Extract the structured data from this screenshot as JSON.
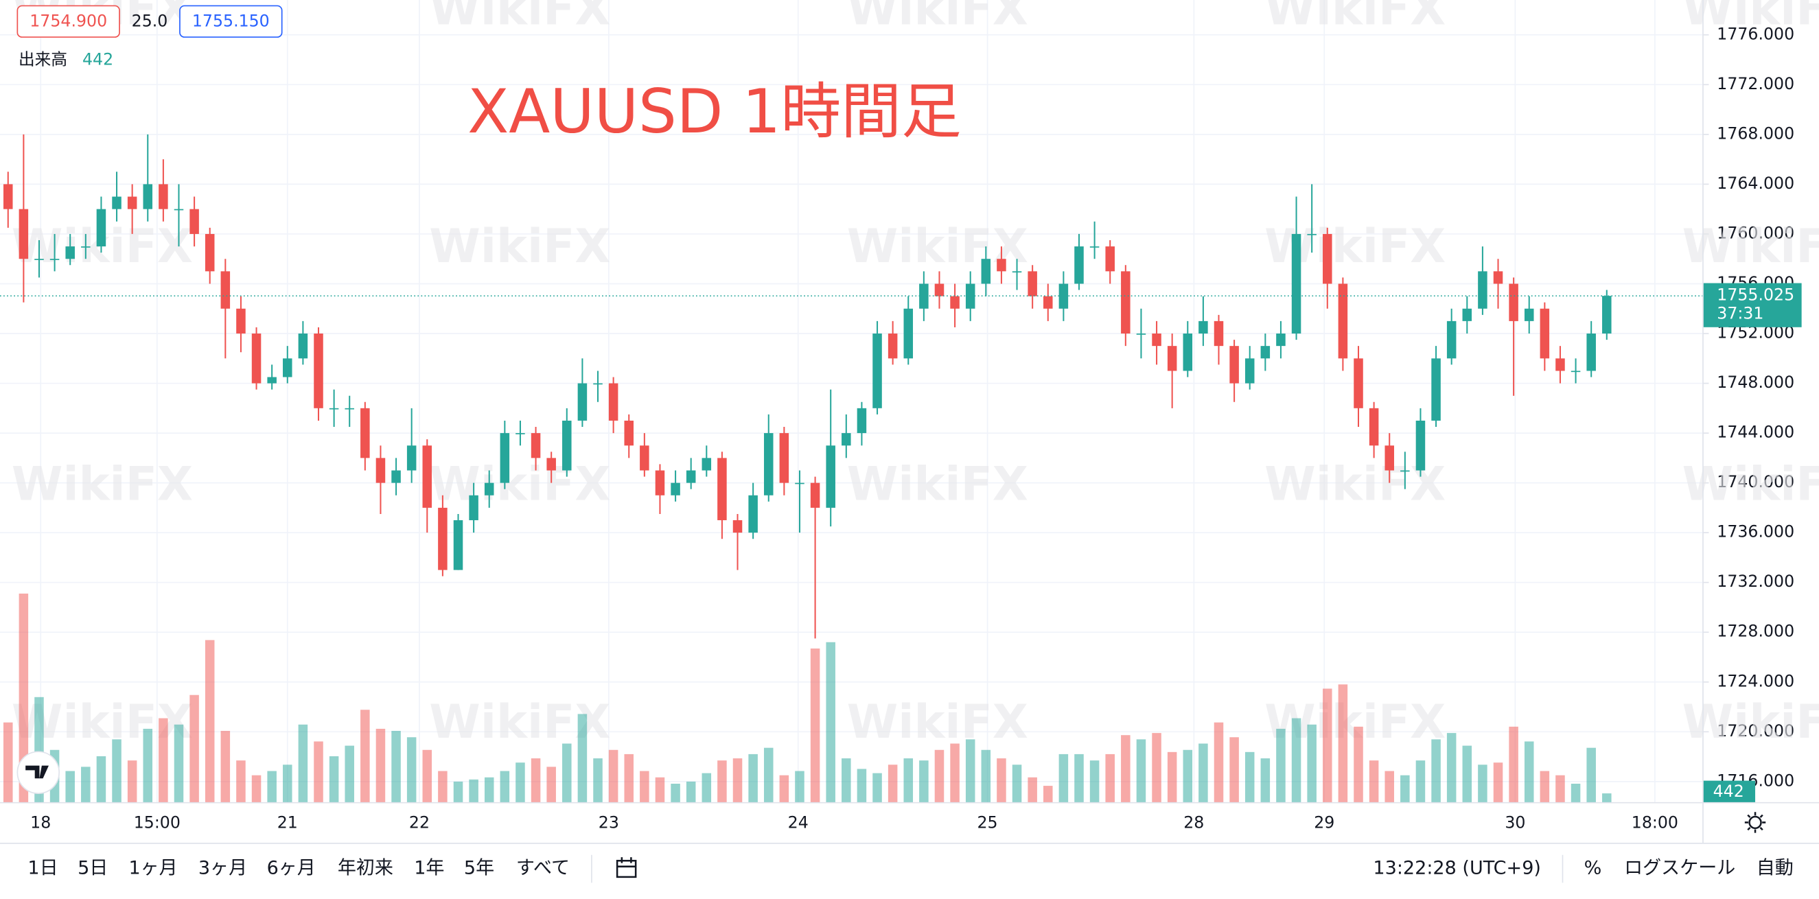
{
  "quote": {
    "bid": "1754.900",
    "spread": "25.0",
    "ask": "1755.150",
    "volume_label": "出来高",
    "volume": "442"
  },
  "watermark": "WikiFX",
  "chart_data": {
    "type": "candlestick",
    "title": "XAUUSD 1時間足",
    "up_color": "#26a69a",
    "down_color": "#ef5350",
    "grid": true,
    "xlim": [
      -0.52,
      109.2
    ],
    "xticks": [
      {
        "value": 2.1,
        "label": "18"
      },
      {
        "value": 9.6,
        "label": "15:00"
      },
      {
        "value": 18.0,
        "label": "21"
      },
      {
        "value": 26.5,
        "label": "22"
      },
      {
        "value": 38.7,
        "label": "23"
      },
      {
        "value": 50.9,
        "label": "24"
      },
      {
        "value": 63.1,
        "label": "25"
      },
      {
        "value": 76.4,
        "label": "28"
      },
      {
        "value": 84.8,
        "label": "29"
      },
      {
        "value": 97.1,
        "label": "30"
      },
      {
        "value": 106.1,
        "label": "18:00"
      }
    ],
    "ylim": [
      1714.3,
      1778.8
    ],
    "yticks": [
      {
        "value": 1716,
        "label": "1716.000"
      },
      {
        "value": 1720,
        "label": "1720.000"
      },
      {
        "value": 1724,
        "label": "1724.000"
      },
      {
        "value": 1728,
        "label": "1728.000"
      },
      {
        "value": 1732,
        "label": "1732.000"
      },
      {
        "value": 1736,
        "label": "1736.000"
      },
      {
        "value": 1740,
        "label": "1740.000"
      },
      {
        "value": 1744,
        "label": "1744.000"
      },
      {
        "value": 1748,
        "label": "1748.000"
      },
      {
        "value": 1752,
        "label": "1752.000"
      },
      {
        "value": 1756,
        "label": "1756.000"
      },
      {
        "value": 1760,
        "label": "1760.000"
      },
      {
        "value": 1764,
        "label": "1764.000"
      },
      {
        "value": 1768,
        "label": "1768.000"
      },
      {
        "value": 1772,
        "label": "1772.000"
      },
      {
        "value": 1776,
        "label": "1776.000"
      }
    ],
    "volume_ylim": [
      0,
      38000
    ],
    "countdown": "37:31",
    "candles": [
      [
        1764,
        1765,
        1760.5,
        1762
      ],
      [
        1762,
        1768,
        1754.5,
        1758
      ],
      [
        1758,
        1759.5,
        1756.5,
        1758
      ],
      [
        1758,
        1760,
        1757,
        1758
      ],
      [
        1758,
        1760,
        1757.5,
        1759
      ],
      [
        1759,
        1760,
        1758,
        1759
      ],
      [
        1759,
        1763,
        1758.5,
        1762
      ],
      [
        1762,
        1765,
        1761,
        1763
      ],
      [
        1763,
        1764,
        1760,
        1762
      ],
      [
        1762,
        1768,
        1761,
        1764
      ],
      [
        1764,
        1766,
        1761,
        1762
      ],
      [
        1762,
        1764,
        1759,
        1762
      ],
      [
        1762,
        1763,
        1759,
        1760
      ],
      [
        1760,
        1760.5,
        1756,
        1757
      ],
      [
        1757,
        1758,
        1750,
        1754
      ],
      [
        1754,
        1755,
        1750.5,
        1752
      ],
      [
        1752,
        1752.5,
        1747.5,
        1748
      ],
      [
        1748,
        1749.5,
        1747.5,
        1748.5
      ],
      [
        1748.5,
        1751,
        1748,
        1750
      ],
      [
        1750,
        1753,
        1749.5,
        1752
      ],
      [
        1752,
        1752.5,
        1745,
        1746
      ],
      [
        1746,
        1747.5,
        1744.5,
        1746
      ],
      [
        1746,
        1747,
        1744.5,
        1746
      ],
      [
        1746,
        1746.5,
        1741,
        1742
      ],
      [
        1742,
        1743,
        1737.5,
        1740
      ],
      [
        1740,
        1742,
        1739,
        1741
      ],
      [
        1741,
        1746,
        1740,
        1743
      ],
      [
        1743,
        1743.5,
        1736,
        1738
      ],
      [
        1738,
        1739,
        1732.5,
        1733
      ],
      [
        1733,
        1737.5,
        1733,
        1737
      ],
      [
        1737,
        1740,
        1736,
        1739
      ],
      [
        1739,
        1741,
        1738,
        1740
      ],
      [
        1740,
        1745,
        1739.5,
        1744
      ],
      [
        1744,
        1745,
        1743,
        1744
      ],
      [
        1744,
        1744.5,
        1741,
        1742
      ],
      [
        1742,
        1742.5,
        1740,
        1741
      ],
      [
        1741,
        1746,
        1740.5,
        1745
      ],
      [
        1745,
        1750,
        1744.5,
        1748
      ],
      [
        1748,
        1749,
        1746.5,
        1748
      ],
      [
        1748,
        1748.5,
        1744,
        1745
      ],
      [
        1745,
        1745.5,
        1742,
        1743
      ],
      [
        1743,
        1744,
        1740.5,
        1741
      ],
      [
        1741,
        1741.5,
        1737.5,
        1739
      ],
      [
        1739,
        1741,
        1738.5,
        1740
      ],
      [
        1740,
        1742,
        1739.5,
        1741
      ],
      [
        1741,
        1743,
        1740.5,
        1742
      ],
      [
        1742,
        1742.5,
        1735.5,
        1737
      ],
      [
        1737,
        1737.5,
        1733,
        1736
      ],
      [
        1736,
        1740,
        1735.5,
        1739
      ],
      [
        1739,
        1745.5,
        1738.5,
        1744
      ],
      [
        1744,
        1744.5,
        1739,
        1740
      ],
      [
        1740,
        1741,
        1736,
        1740
      ],
      [
        1740,
        1740.5,
        1727.5,
        1738
      ],
      [
        1738,
        1747.5,
        1736.5,
        1743
      ],
      [
        1743,
        1745.5,
        1742,
        1744
      ],
      [
        1744,
        1746.5,
        1743,
        1746
      ],
      [
        1746,
        1753,
        1745.5,
        1752
      ],
      [
        1752,
        1753,
        1749.5,
        1750
      ],
      [
        1750,
        1755,
        1749.5,
        1754
      ],
      [
        1754,
        1757,
        1753,
        1756
      ],
      [
        1756,
        1757,
        1754,
        1755
      ],
      [
        1755,
        1756,
        1752.5,
        1754
      ],
      [
        1754,
        1757,
        1753,
        1756
      ],
      [
        1756,
        1759,
        1755,
        1758
      ],
      [
        1758,
        1759,
        1756,
        1757
      ],
      [
        1757,
        1758,
        1755.5,
        1757
      ],
      [
        1757,
        1757.5,
        1754,
        1755
      ],
      [
        1755,
        1756,
        1753,
        1754
      ],
      [
        1754,
        1757,
        1753,
        1756
      ],
      [
        1756,
        1760,
        1755.5,
        1759
      ],
      [
        1759,
        1761,
        1758,
        1759
      ],
      [
        1759,
        1759.5,
        1756,
        1757
      ],
      [
        1757,
        1757.5,
        1751,
        1752
      ],
      [
        1752,
        1754,
        1750,
        1752
      ],
      [
        1752,
        1753,
        1749.5,
        1751
      ],
      [
        1751,
        1752,
        1746,
        1749
      ],
      [
        1749,
        1753,
        1748.5,
        1752
      ],
      [
        1752,
        1755,
        1751,
        1753
      ],
      [
        1753,
        1753.5,
        1749.5,
        1751
      ],
      [
        1751,
        1751.5,
        1746.5,
        1748
      ],
      [
        1748,
        1751,
        1747.5,
        1750
      ],
      [
        1750,
        1752,
        1749,
        1751
      ],
      [
        1751,
        1753,
        1750,
        1752
      ],
      [
        1752,
        1763,
        1751.5,
        1760
      ],
      [
        1760,
        1764,
        1758.5,
        1760
      ],
      [
        1760,
        1760.5,
        1754,
        1756
      ],
      [
        1756,
        1756.5,
        1749,
        1750
      ],
      [
        1750,
        1751,
        1744.5,
        1746
      ],
      [
        1746,
        1746.5,
        1742,
        1743
      ],
      [
        1743,
        1744,
        1740,
        1741
      ],
      [
        1741,
        1742.5,
        1739.5,
        1741
      ],
      [
        1741,
        1746,
        1740.5,
        1745
      ],
      [
        1745,
        1751,
        1744.5,
        1750
      ],
      [
        1750,
        1754,
        1749.5,
        1753
      ],
      [
        1753,
        1755,
        1752,
        1754
      ],
      [
        1754,
        1759,
        1753.5,
        1757
      ],
      [
        1757,
        1758,
        1754,
        1756
      ],
      [
        1756,
        1756.5,
        1747,
        1753
      ],
      [
        1753,
        1755,
        1752,
        1754
      ],
      [
        1754,
        1754.5,
        1749,
        1750
      ],
      [
        1750,
        1751,
        1748,
        1749
      ],
      [
        1749,
        1750,
        1748,
        1749
      ],
      [
        1749,
        1753,
        1748.5,
        1752
      ],
      [
        1752,
        1755.5,
        1751.5,
        1755.025
      ]
    ],
    "volume": [
      3800,
      9900,
      5000,
      2500,
      1500,
      1700,
      2200,
      3000,
      2000,
      3500,
      4000,
      3700,
      5100,
      7700,
      3400,
      2000,
      1300,
      1500,
      1800,
      3700,
      2900,
      2200,
      2700,
      4400,
      3500,
      3400,
      3100,
      2500,
      1500,
      1000,
      1100,
      1200,
      1500,
      1900,
      2100,
      1700,
      2800,
      4200,
      2100,
      2500,
      2300,
      1500,
      1200,
      900,
      1000,
      1400,
      2000,
      2100,
      2300,
      2600,
      1300,
      1500,
      7300,
      7600,
      2100,
      1600,
      1400,
      1800,
      2100,
      2000,
      2500,
      2800,
      3000,
      2500,
      2100,
      1800,
      1200,
      800,
      2300,
      2300,
      2000,
      2300,
      3200,
      3000,
      3300,
      2400,
      2500,
      2800,
      3800,
      3100,
      2400,
      2100,
      3500,
      4000,
      3700,
      5400,
      5600,
      3600,
      2000,
      1500,
      1300,
      2000,
      3000,
      3300,
      2700,
      1800,
      1900,
      3600,
      2900,
      1500,
      1300,
      900,
      2600,
      442
    ]
  },
  "toolbar": {
    "ranges": [
      "1日",
      "5日",
      "1ヶ月",
      "3ヶ月",
      "6ヶ月",
      "年初来",
      "1年",
      "5年",
      "すべて"
    ],
    "clock": "13:22:28 (UTC+9)",
    "percent": "%",
    "log": "ログスケール",
    "auto": "自動"
  }
}
